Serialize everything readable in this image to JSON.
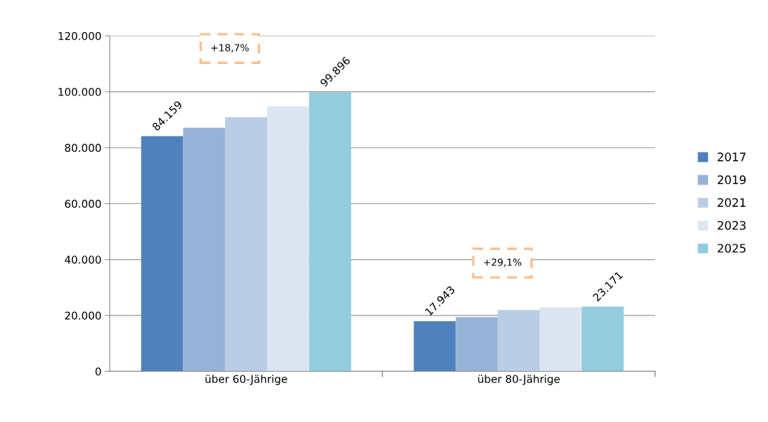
{
  "chart_data": {
    "type": "bar",
    "categories": [
      "über 60-Jährige",
      "über 80-Jährige"
    ],
    "series": [
      {
        "name": "2017",
        "color": "#4f81bd",
        "values": [
          84159,
          17943
        ],
        "value_labels": [
          "84.159",
          "17.943"
        ]
      },
      {
        "name": "2019",
        "color": "#95b3d7",
        "values": [
          87100,
          19400
        ],
        "value_labels": [
          null,
          null
        ]
      },
      {
        "name": "2021",
        "color": "#b9cde5",
        "values": [
          90900,
          21900
        ],
        "value_labels": [
          null,
          null
        ]
      },
      {
        "name": "2023",
        "color": "#dce6f2",
        "values": [
          94800,
          22900
        ],
        "value_labels": [
          null,
          null
        ]
      },
      {
        "name": "2025",
        "color": "#93cddd",
        "values": [
          99896,
          23171
        ],
        "value_labels": [
          "99.896",
          "23.171"
        ]
      }
    ],
    "ylim": [
      0,
      120000
    ],
    "yticks": [
      {
        "value": 0,
        "label": "0"
      },
      {
        "value": 20000,
        "label": "20.000"
      },
      {
        "value": 40000,
        "label": "40.000"
      },
      {
        "value": 60000,
        "label": "60.000"
      },
      {
        "value": 80000,
        "label": "80.000"
      },
      {
        "value": 100000,
        "label": "100.000"
      },
      {
        "value": 120000,
        "label": "120.000"
      }
    ],
    "grid": "y",
    "legend": "right",
    "annotations": [
      "+18,7%",
      "+29,1%"
    ]
  }
}
